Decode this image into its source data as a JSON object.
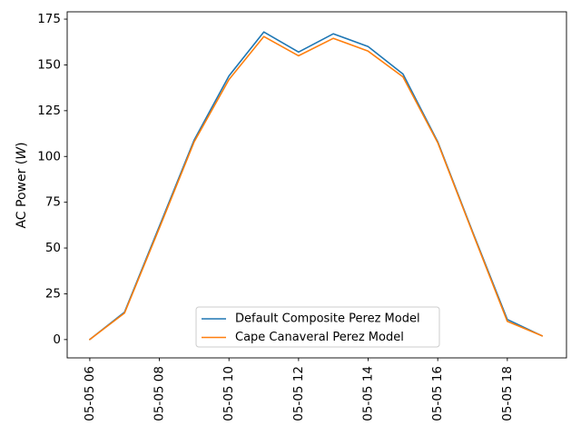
{
  "figure": {
    "background": "#ffffff",
    "ylabel_prefix": "AC Power (",
    "ylabel_unit": "W",
    "ylabel_suffix": ")"
  },
  "chart_data": {
    "type": "line",
    "title": "",
    "xlabel": "",
    "ylabel": "AC Power (W)",
    "grid": false,
    "legend_position": "lower center inside axes",
    "x_hours": [
      6,
      7,
      8,
      9,
      10,
      11,
      12,
      13,
      14,
      15,
      16,
      17,
      18,
      19
    ],
    "x_tick_hours": [
      6,
      8,
      10,
      12,
      14,
      16,
      18
    ],
    "x_tick_labels": [
      "05-05 06",
      "05-05 08",
      "05-05 10",
      "05-05 12",
      "05-05 14",
      "05-05 16",
      "05-05 18"
    ],
    "y_ticks": [
      0,
      25,
      50,
      75,
      100,
      125,
      150,
      175
    ],
    "xlim": [
      5.35,
      19.7
    ],
    "ylim": [
      -10,
      179
    ],
    "series": [
      {
        "name": "Default Composite Perez Model",
        "color": "#1f77b4",
        "values": [
          0,
          15,
          62,
          109,
          144,
          168,
          157,
          167,
          160,
          145,
          108,
          59,
          11,
          2
        ]
      },
      {
        "name": "Cape Canaveral Perez Model",
        "color": "#ff7f0e",
        "values": [
          0,
          14.5,
          61,
          108,
          142,
          165.5,
          155,
          164.5,
          157.5,
          143.5,
          107.5,
          58.5,
          10,
          2
        ]
      }
    ],
    "legend_style": {
      "border_color": "#cccccc",
      "background": "#ffffff",
      "text_color": "#000000"
    },
    "axis_color": "#000000"
  }
}
